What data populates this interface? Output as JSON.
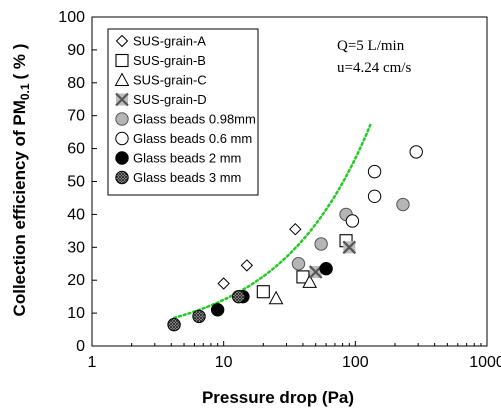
{
  "chart_data": {
    "type": "scatter",
    "xlabel": "Pressure drop (Pa)",
    "ylabel_main": "Collection efficiency of PM",
    "ylabel_sub": "0.1",
    "ylabel_unit": "( % )",
    "xscale": "log",
    "xlim": [
      1,
      1000
    ],
    "ylim": [
      0,
      100
    ],
    "xticks": [
      "1",
      "10",
      "100",
      "1000"
    ],
    "yticks": [
      "0",
      "10",
      "20",
      "30",
      "40",
      "50",
      "60",
      "70",
      "80",
      "90",
      "100"
    ],
    "annotations": [
      "Q=5 L/min",
      "u=4.24 cm/s"
    ],
    "legend_position": "top-left",
    "series": [
      {
        "name": "SUS-grain-A",
        "marker": "diamond",
        "points": [
          [
            10,
            19
          ],
          [
            15,
            24.5
          ],
          [
            35,
            35.5
          ]
        ]
      },
      {
        "name": "SUS-grain-B",
        "marker": "square",
        "points": [
          [
            20,
            16.5
          ],
          [
            40,
            21
          ],
          [
            85,
            32
          ]
        ]
      },
      {
        "name": "SUS-grain-C",
        "marker": "triangle",
        "points": [
          [
            25,
            14.5
          ],
          [
            45,
            19.5
          ]
        ]
      },
      {
        "name": "SUS-grain-D",
        "marker": "x-square",
        "points": [
          [
            50,
            22.5
          ],
          [
            90,
            30
          ]
        ]
      },
      {
        "name": "Glass beads 0.98mm",
        "marker": "circle-gray",
        "points": [
          [
            37,
            25
          ],
          [
            55,
            31
          ],
          [
            85,
            40
          ],
          [
            230,
            43
          ]
        ]
      },
      {
        "name": "Glass beads 0.6 mm",
        "marker": "circle-open",
        "points": [
          [
            95,
            38
          ],
          [
            140,
            45.5
          ],
          [
            140,
            53
          ],
          [
            290,
            59
          ]
        ]
      },
      {
        "name": "Glass beads 2 mm",
        "marker": "circle-black",
        "points": [
          [
            9,
            11
          ],
          [
            14,
            15
          ],
          [
            60,
            23.5
          ]
        ]
      },
      {
        "name": "Glass beads 3 mm",
        "marker": "circle-hatched",
        "points": [
          [
            4.2,
            6.5
          ],
          [
            6.5,
            9
          ],
          [
            13,
            15
          ]
        ]
      }
    ],
    "trend_line": {
      "style": "dotted",
      "color": "#22cc22",
      "x_range": [
        4.2,
        130
      ]
    }
  }
}
